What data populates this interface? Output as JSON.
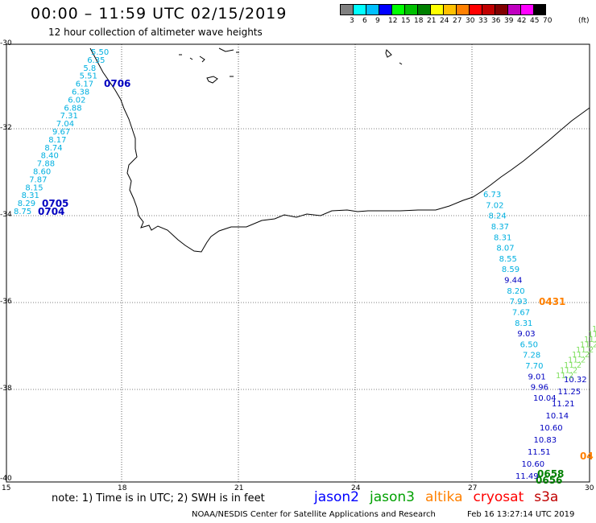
{
  "header": {
    "title": "00:00 – 11:59 UTC 02/15/2019",
    "subtitle": "12 hour collection of altimeter wave heights"
  },
  "legend": {
    "colors": [
      "#808080",
      "#00ffff",
      "#00c0ff",
      "#0000ff",
      "#00ff00",
      "#00c000",
      "#008000",
      "#ffff00",
      "#ffc000",
      "#ff8000",
      "#ff0000",
      "#c00000",
      "#800000",
      "#c000c0",
      "#ff00ff",
      "#000000"
    ],
    "labels": [
      "3",
      "6",
      "9",
      "12",
      "15",
      "18",
      "21",
      "24",
      "27",
      "30",
      "33",
      "36",
      "39",
      "42",
      "45",
      "70"
    ],
    "unit": "(ft)"
  },
  "axes": {
    "lat_labels": [
      "-30",
      "-32",
      "-34",
      "-36",
      "-38",
      "-40"
    ],
    "lon_labels": [
      "15",
      "18",
      "21",
      "24",
      "27",
      "30"
    ]
  },
  "tracks": {
    "west_cyan": [
      "5.50",
      "6.35",
      "5.8",
      "5.51",
      "6.17",
      "6.38",
      "6.02",
      "6.88",
      "7.31",
      "7.04",
      "9.67",
      "8.17",
      "8.74",
      "8.40",
      "7.88",
      "8.60",
      "7.87",
      "8.15",
      "8.31",
      "8.29",
      "8.75"
    ],
    "west_pass_labels": [
      "0706",
      "0705",
      "0704"
    ],
    "east_mixed": [
      {
        "v": "6.73",
        "c": "#00b0e0"
      },
      {
        "v": "7.02",
        "c": "#00b0e0"
      },
      {
        "v": "8.24",
        "c": "#00b0e0"
      },
      {
        "v": "8.37",
        "c": "#00b0e0"
      },
      {
        "v": "8.31",
        "c": "#00b0e0"
      },
      {
        "v": "8.07",
        "c": "#00b0e0"
      },
      {
        "v": "8.55",
        "c": "#00b0e0"
      },
      {
        "v": "8.59",
        "c": "#00b0e0"
      },
      {
        "v": "9.44",
        "c": "#0000c0"
      },
      {
        "v": "8.20",
        "c": "#00b0e0"
      },
      {
        "v": "7.93",
        "c": "#00b0e0"
      },
      {
        "v": "7.67",
        "c": "#00b0e0"
      },
      {
        "v": "8.31",
        "c": "#00b0e0"
      },
      {
        "v": "9.03",
        "c": "#0000c0"
      },
      {
        "v": "6.50",
        "c": "#00b0e0"
      },
      {
        "v": "7.28",
        "c": "#00b0e0"
      },
      {
        "v": "7.70",
        "c": "#00b0e0"
      },
      {
        "v": "9.01",
        "c": "#0000c0"
      },
      {
        "v": "9.96",
        "c": "#0000c0"
      },
      {
        "v": "10.04",
        "c": "#0000c0"
      }
    ],
    "east_pass_labels": [
      "0431",
      "0658",
      "0656",
      "04"
    ],
    "southeast_values": [
      "11.49",
      "10.60",
      "11.51",
      "10.83",
      "10.60",
      "10.14",
      "11.21",
      "11.25",
      "10.32"
    ]
  },
  "notes": {
    "note": "note: 1) Time is in UTC; 2) SWH is in feet",
    "satellites": [
      {
        "name": "jason2",
        "color": "#0000ff"
      },
      {
        "name": "jason3",
        "color": "#00a000"
      },
      {
        "name": "altika",
        "color": "#ff8000"
      },
      {
        "name": "cryosat",
        "color": "#ff0000"
      },
      {
        "name": "s3a",
        "color": "#c00000"
      }
    ],
    "footer": "NOAA/NESDIS Center for Satellite Applications and Research",
    "footer_time": "Feb 16 13:27:14 UTC 2019"
  }
}
